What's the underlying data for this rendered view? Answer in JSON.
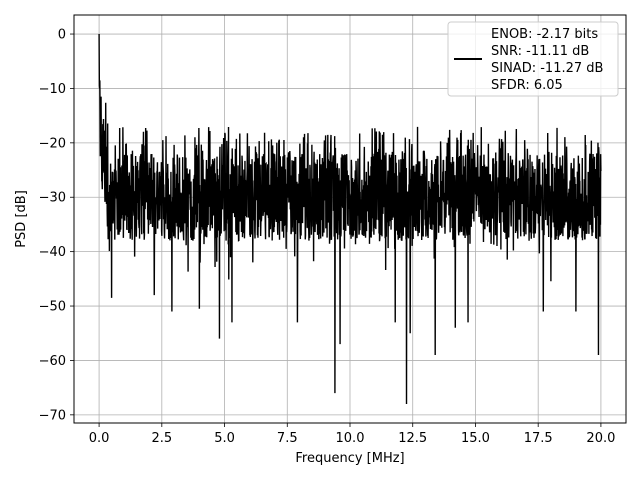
{
  "chart_data": {
    "type": "line",
    "title": "",
    "xlabel": "Frequency [MHz]",
    "ylabel": "PSD [dB]",
    "xlim": [
      -1.0,
      21.0
    ],
    "ylim": [
      -71.5,
      3.5
    ],
    "xticks": [
      0.0,
      2.5,
      5.0,
      7.5,
      10.0,
      12.5,
      15.0,
      17.5,
      20.0
    ],
    "xtick_labels": [
      "0.0",
      "2.5",
      "5.0",
      "7.5",
      "10.0",
      "12.5",
      "15.0",
      "17.5",
      "20.0"
    ],
    "yticks": [
      0,
      -10,
      -20,
      -30,
      -40,
      -50,
      -60,
      -70
    ],
    "ytick_labels": [
      "0",
      "−10",
      "−20",
      "−30",
      "−40",
      "−50",
      "−60",
      "−70"
    ],
    "grid": true,
    "legend_position": "top-right",
    "line_color": "#000000",
    "legend_entries": [
      "ENOB: -2.17 bits",
      "SNR: -11.11 dB",
      "SINAD: -11.27 dB",
      "SFDR: 6.05"
    ],
    "series": [
      {
        "x_range": [
          0.0,
          20.0
        ],
        "num_points": 2048,
        "peak": {
          "x": 0.0,
          "y": 0.0
        },
        "noise_floor_mean": -30,
        "noise_upper_envelope": -22,
        "notable_minima": [
          {
            "x": 0.5,
            "y": -48.5
          },
          {
            "x": 2.2,
            "y": -48
          },
          {
            "x": 2.9,
            "y": -51
          },
          {
            "x": 4.0,
            "y": -50.5
          },
          {
            "x": 4.8,
            "y": -56
          },
          {
            "x": 5.3,
            "y": -53
          },
          {
            "x": 7.9,
            "y": -53
          },
          {
            "x": 9.4,
            "y": -66
          },
          {
            "x": 9.6,
            "y": -57
          },
          {
            "x": 11.8,
            "y": -53
          },
          {
            "x": 12.25,
            "y": -68
          },
          {
            "x": 12.4,
            "y": -55
          },
          {
            "x": 13.4,
            "y": -59
          },
          {
            "x": 14.2,
            "y": -54
          },
          {
            "x": 14.7,
            "y": -53
          },
          {
            "x": 17.7,
            "y": -51
          },
          {
            "x": 19.0,
            "y": -51
          },
          {
            "x": 19.9,
            "y": -59
          }
        ]
      }
    ]
  }
}
